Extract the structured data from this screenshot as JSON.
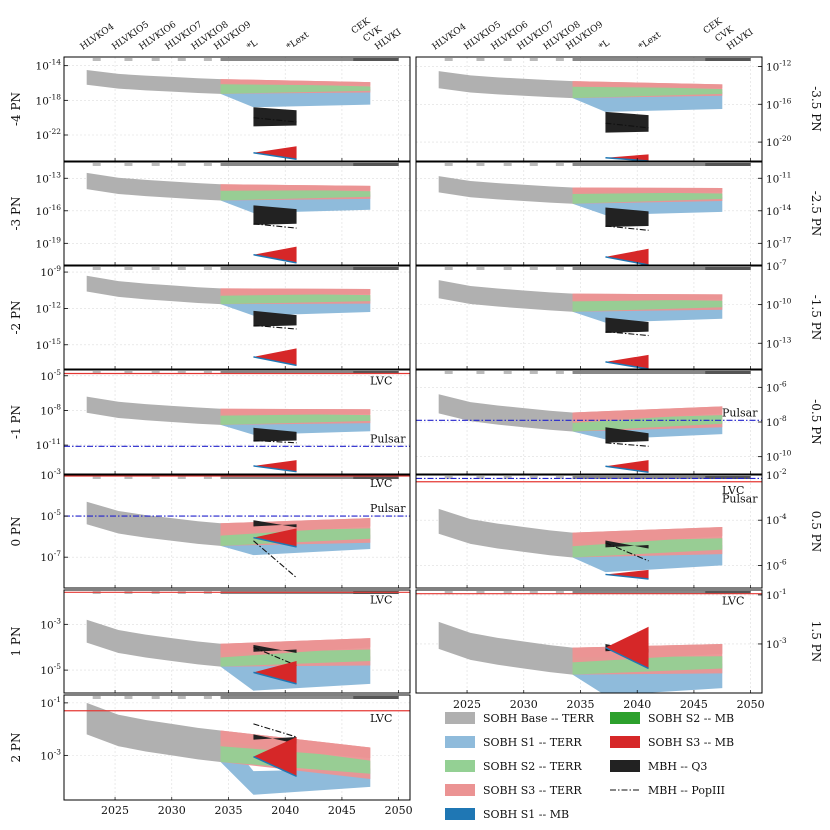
{
  "chart_data": {
    "type": "area",
    "xlim": [
      2020.5,
      2051
    ],
    "xticks": [
      2025,
      2030,
      2035,
      2040,
      2045,
      2050
    ],
    "detectors": [
      {
        "label": "HLVKO4",
        "year": 2022.5
      },
      {
        "label": "HLVKIO5",
        "year": 2025.3
      },
      {
        "label": "HLVKIO6",
        "year": 2027.7
      },
      {
        "label": "HLVKIO7",
        "year": 2030.0
      },
      {
        "label": "HLVKIO8",
        "year": 2032.3
      },
      {
        "label": "HLVKIO9",
        "year": 2034.3
      },
      {
        "label": "*L",
        "year": 2037.2
      },
      {
        "label": "*Lext",
        "year": 2040.7
      },
      {
        "label": "CEK",
        "year": 2046.4
      },
      {
        "label": "CVK",
        "year": 2047.0
      },
      {
        "label": "HLVKI",
        "year": 2047.6
      }
    ],
    "panels": [
      {
        "label": "-4 PN",
        "side": "left",
        "ylim_exp": [
          -25,
          -13
        ],
        "ticks": [
          "10^{-14}",
          "10^{-18}",
          "10^{-22}"
        ],
        "tick_exps": [
          -14,
          -18,
          -22
        ],
        "base_exp": [
          -14.5,
          -16.2
        ],
        "terr_end_exp": [
          -16.5,
          -18.5
        ],
        "mbh_exp": [
          -18.8,
          -21
        ],
        "popiii_exp": [
          -20,
          -20.5
        ],
        "mb_exp": [
          -23.3,
          -24.8
        ],
        "lvc_exp": null,
        "pulsar_exp": null
      },
      {
        "label": "-3.5 PN",
        "side": "right",
        "ylim_exp": [
          -22,
          -11
        ],
        "ticks": [
          "10^{-12}",
          "10^{-16}",
          "10^{-20}"
        ],
        "tick_exps": [
          -12,
          -16,
          -20
        ],
        "base_exp": [
          -12.5,
          -14.3
        ],
        "terr_end_exp": [
          -14.5,
          -16.5
        ],
        "mbh_exp": [
          -16.8,
          -19
        ],
        "popiii_exp": [
          -18,
          -18.5
        ],
        "mb_exp": [
          -21.3,
          -22
        ],
        "lvc_exp": null,
        "pulsar_exp": null
      },
      {
        "label": "-3 PN",
        "side": "left",
        "ylim_exp": [
          -21,
          -11.5
        ],
        "ticks": [
          "10^{-13}",
          "10^{-16}",
          "10^{-19}"
        ],
        "tick_exps": [
          -13,
          -16,
          -19
        ],
        "base_exp": [
          -12.5,
          -14
        ],
        "terr_end_exp": [
          -14.3,
          -15.9
        ],
        "mbh_exp": [
          -15.5,
          -17.3
        ],
        "popiii_exp": [
          -17.2,
          -17.6
        ],
        "mb_exp": [
          -19.3,
          -20.8
        ],
        "lvc_exp": null,
        "pulsar_exp": null
      },
      {
        "label": "-2.5 PN",
        "side": "right",
        "ylim_exp": [
          -19,
          -9.5
        ],
        "ticks": [
          "10^{-11}",
          "10^{-14}",
          "10^{-17}"
        ],
        "tick_exps": [
          -11,
          -14,
          -17
        ],
        "base_exp": [
          -10.8,
          -12.3
        ],
        "terr_end_exp": [
          -12.5,
          -14.1
        ],
        "mbh_exp": [
          -13.7,
          -15.5
        ],
        "popiii_exp": [
          -15.4,
          -15.8
        ],
        "mb_exp": [
          -17.5,
          -19
        ],
        "lvc_exp": null,
        "pulsar_exp": null
      },
      {
        "label": "-2 PN",
        "side": "left",
        "ylim_exp": [
          -17,
          -8.5
        ],
        "ticks": [
          "10^{-9}",
          "10^{-12}",
          "10^{-15}"
        ],
        "tick_exps": [
          -9,
          -12,
          -15
        ],
        "base_exp": [
          -9.3,
          -10.6
        ],
        "terr_end_exp": [
          -11,
          -12.3
        ],
        "mbh_exp": [
          -12.2,
          -13.5
        ],
        "popiii_exp": [
          -13.4,
          -13.7
        ],
        "mb_exp": [
          -15.3,
          -16.7
        ],
        "lvc_exp": null,
        "pulsar_exp": null
      },
      {
        "label": "-1.5 PN",
        "side": "right",
        "ylim_exp": [
          -15,
          -7
        ],
        "ticks": [
          "10^{-7}",
          "10^{-10}",
          "10^{-13}"
        ],
        "tick_exps": [
          -7,
          -10,
          -13
        ],
        "base_exp": [
          -8.1,
          -9.5
        ],
        "terr_end_exp": [
          -9.8,
          -11.1
        ],
        "mbh_exp": [
          -11,
          -12.2
        ],
        "popiii_exp": [
          -12.1,
          -12.4
        ],
        "mb_exp": [
          -13.9,
          -15
        ],
        "lvc_exp": null,
        "pulsar_exp": null
      },
      {
        "label": "-1 PN",
        "side": "left",
        "ylim_exp": [
          -13.5,
          -4.5
        ],
        "ticks": [
          "10^{-5}",
          "10^{-8}",
          "10^{-11}"
        ],
        "tick_exps": [
          -5,
          -8,
          -11
        ],
        "base_exp": [
          -6.8,
          -8.2
        ],
        "terr_end_exp": [
          -8.5,
          -9.8
        ],
        "mbh_exp": [
          -9.5,
          -10.7
        ],
        "popiii_exp": [
          -10.6,
          -10.8
        ],
        "mb_exp": [
          -12.3,
          -13.3
        ],
        "lvc_exp": -4.8,
        "pulsar_exp": -11.1
      },
      {
        "label": "-0.5 PN",
        "side": "right",
        "ylim_exp": [
          -11,
          -5
        ],
        "ticks": [
          "10^{-6}",
          "10^{-8}",
          "10^{-10}"
        ],
        "tick_exps": [
          -6,
          -8,
          -10
        ],
        "base_exp": [
          -6.4,
          -7.5
        ],
        "terr_end_exp": [
          -7.7,
          -8.7
        ],
        "mbh_exp": [
          -8.3,
          -9.2
        ],
        "popiii_exp": [
          -9.2,
          -9.4
        ],
        "mb_exp": [
          -10.2,
          -10.9
        ],
        "lvc_exp": null,
        "pulsar_exp": -7.9
      },
      {
        "label": "0 PN",
        "side": "left",
        "ylim_exp": [
          -8.5,
          -3
        ],
        "ticks": [
          "10^{-3}",
          "10^{-5}",
          "10^{-7}"
        ],
        "tick_exps": [
          -3,
          -5,
          -7
        ],
        "base_exp": [
          -4.3,
          -5.4
        ],
        "terr_end_exp": [
          -5.7,
          -6.6
        ],
        "mbh_exp": [
          -5.2,
          -5.5
        ],
        "popiii_exp": [
          -6.2,
          -8.0
        ],
        "mb_exp": [
          -5.6,
          -6.5
        ],
        "lvc_exp": -3.05,
        "pulsar_exp": -5.0
      },
      {
        "label": "0.5 PN",
        "side": "right",
        "ylim_exp": [
          -7,
          -2
        ],
        "ticks": [
          "10^{-2}",
          "10^{-4}",
          "10^{-6}"
        ],
        "tick_exps": [
          -2,
          -4,
          -6
        ],
        "base_exp": [
          -3.5,
          -4.6
        ],
        "terr_end_exp": [
          -4.9,
          -6.0
        ],
        "mbh_exp": [
          -4.9,
          -5.2
        ],
        "popiii_exp": [
          -5.0,
          -5.8
        ],
        "mb_exp": [
          -6.2,
          -6.6
        ],
        "lvc_exp": -2.3,
        "pulsar_exp": -2.15
      },
      {
        "label": "1 PN",
        "side": "left",
        "ylim_exp": [
          -6,
          -1.5
        ],
        "ticks": [
          "10^{-3}",
          "10^{-5}"
        ],
        "tick_exps": [
          -3,
          -5
        ],
        "base_exp": [
          -2.8,
          -3.8
        ],
        "terr_end_exp": [
          -4.2,
          -5.6
        ],
        "mbh_exp": [
          -3.9,
          -4.2
        ],
        "popiii_exp": [
          -4.0,
          -4.8
        ],
        "mb_exp": [
          -4.6,
          -5.6
        ],
        "lvc_exp": -1.6,
        "pulsar_exp": null
      },
      {
        "label": "1.5 PN",
        "side": "right",
        "ylim_exp": [
          -5,
          -0.8
        ],
        "ticks": [
          "10^{-1}",
          "10^{-3}"
        ],
        "tick_exps": [
          -1,
          -3
        ],
        "base_exp": [
          -2.1,
          -3.2
        ],
        "terr_end_exp": [
          -3.6,
          -4.8
        ],
        "mbh_exp": [
          -3.0,
          -3.3
        ],
        "popiii_exp": [
          -3.2,
          -3.7
        ],
        "mb_exp": [
          -2.3,
          -4.0
        ],
        "lvc_exp": -0.95,
        "pulsar_exp": null
      },
      {
        "label": "2 PN",
        "side": "left",
        "ylim_exp": [
          -4.7,
          -0.7
        ],
        "ticks": [
          "10^{-1}",
          "10^{-3}"
        ],
        "tick_exps": [
          -1,
          -3
        ],
        "base_exp": [
          -1.0,
          -2.2
        ],
        "terr_end_exp": [
          -3.3,
          -4.2
        ],
        "mbh_exp": [
          -2.2,
          -2.4
        ],
        "popiii_exp": [
          -1.8,
          -2.3
        ],
        "mb_exp": [
          -2.3,
          -3.8
        ],
        "lvc_exp": -1.3,
        "pulsar_exp": null
      }
    ],
    "annotations": {
      "lvc": "LVC",
      "pulsar": "Pulsar"
    },
    "series": [
      {
        "name": "SOBH Base -- TERR",
        "color": "#b0b0b0",
        "style": "band"
      },
      {
        "name": "SOBH S1 -- TERR",
        "color": "#8fbbdb",
        "style": "band"
      },
      {
        "name": "SOBH S2 -- TERR",
        "color": "#94d094",
        "style": "band"
      },
      {
        "name": "SOBH S3 -- TERR",
        "color": "#eb9393",
        "style": "band"
      },
      {
        "name": "SOBH S1 -- MB",
        "color": "#1f77b4",
        "style": "band"
      },
      {
        "name": "SOBH S2 -- MB",
        "color": "#2ca02c",
        "style": "band"
      },
      {
        "name": "SOBH S3 -- MB",
        "color": "#d62728",
        "style": "band"
      },
      {
        "name": "MBH -- Q3",
        "color": "#222222",
        "style": "band"
      },
      {
        "name": "MBH -- PopIII",
        "color": "#111111",
        "style": "dashdot"
      }
    ],
    "base_years": [
      2022.5,
      2025.3,
      2027.7,
      2030.0,
      2032.3,
      2034.3
    ],
    "terr_years": [
      2034.3,
      2047.5
    ],
    "mb_years": [
      2037.2,
      2041.0
    ]
  }
}
